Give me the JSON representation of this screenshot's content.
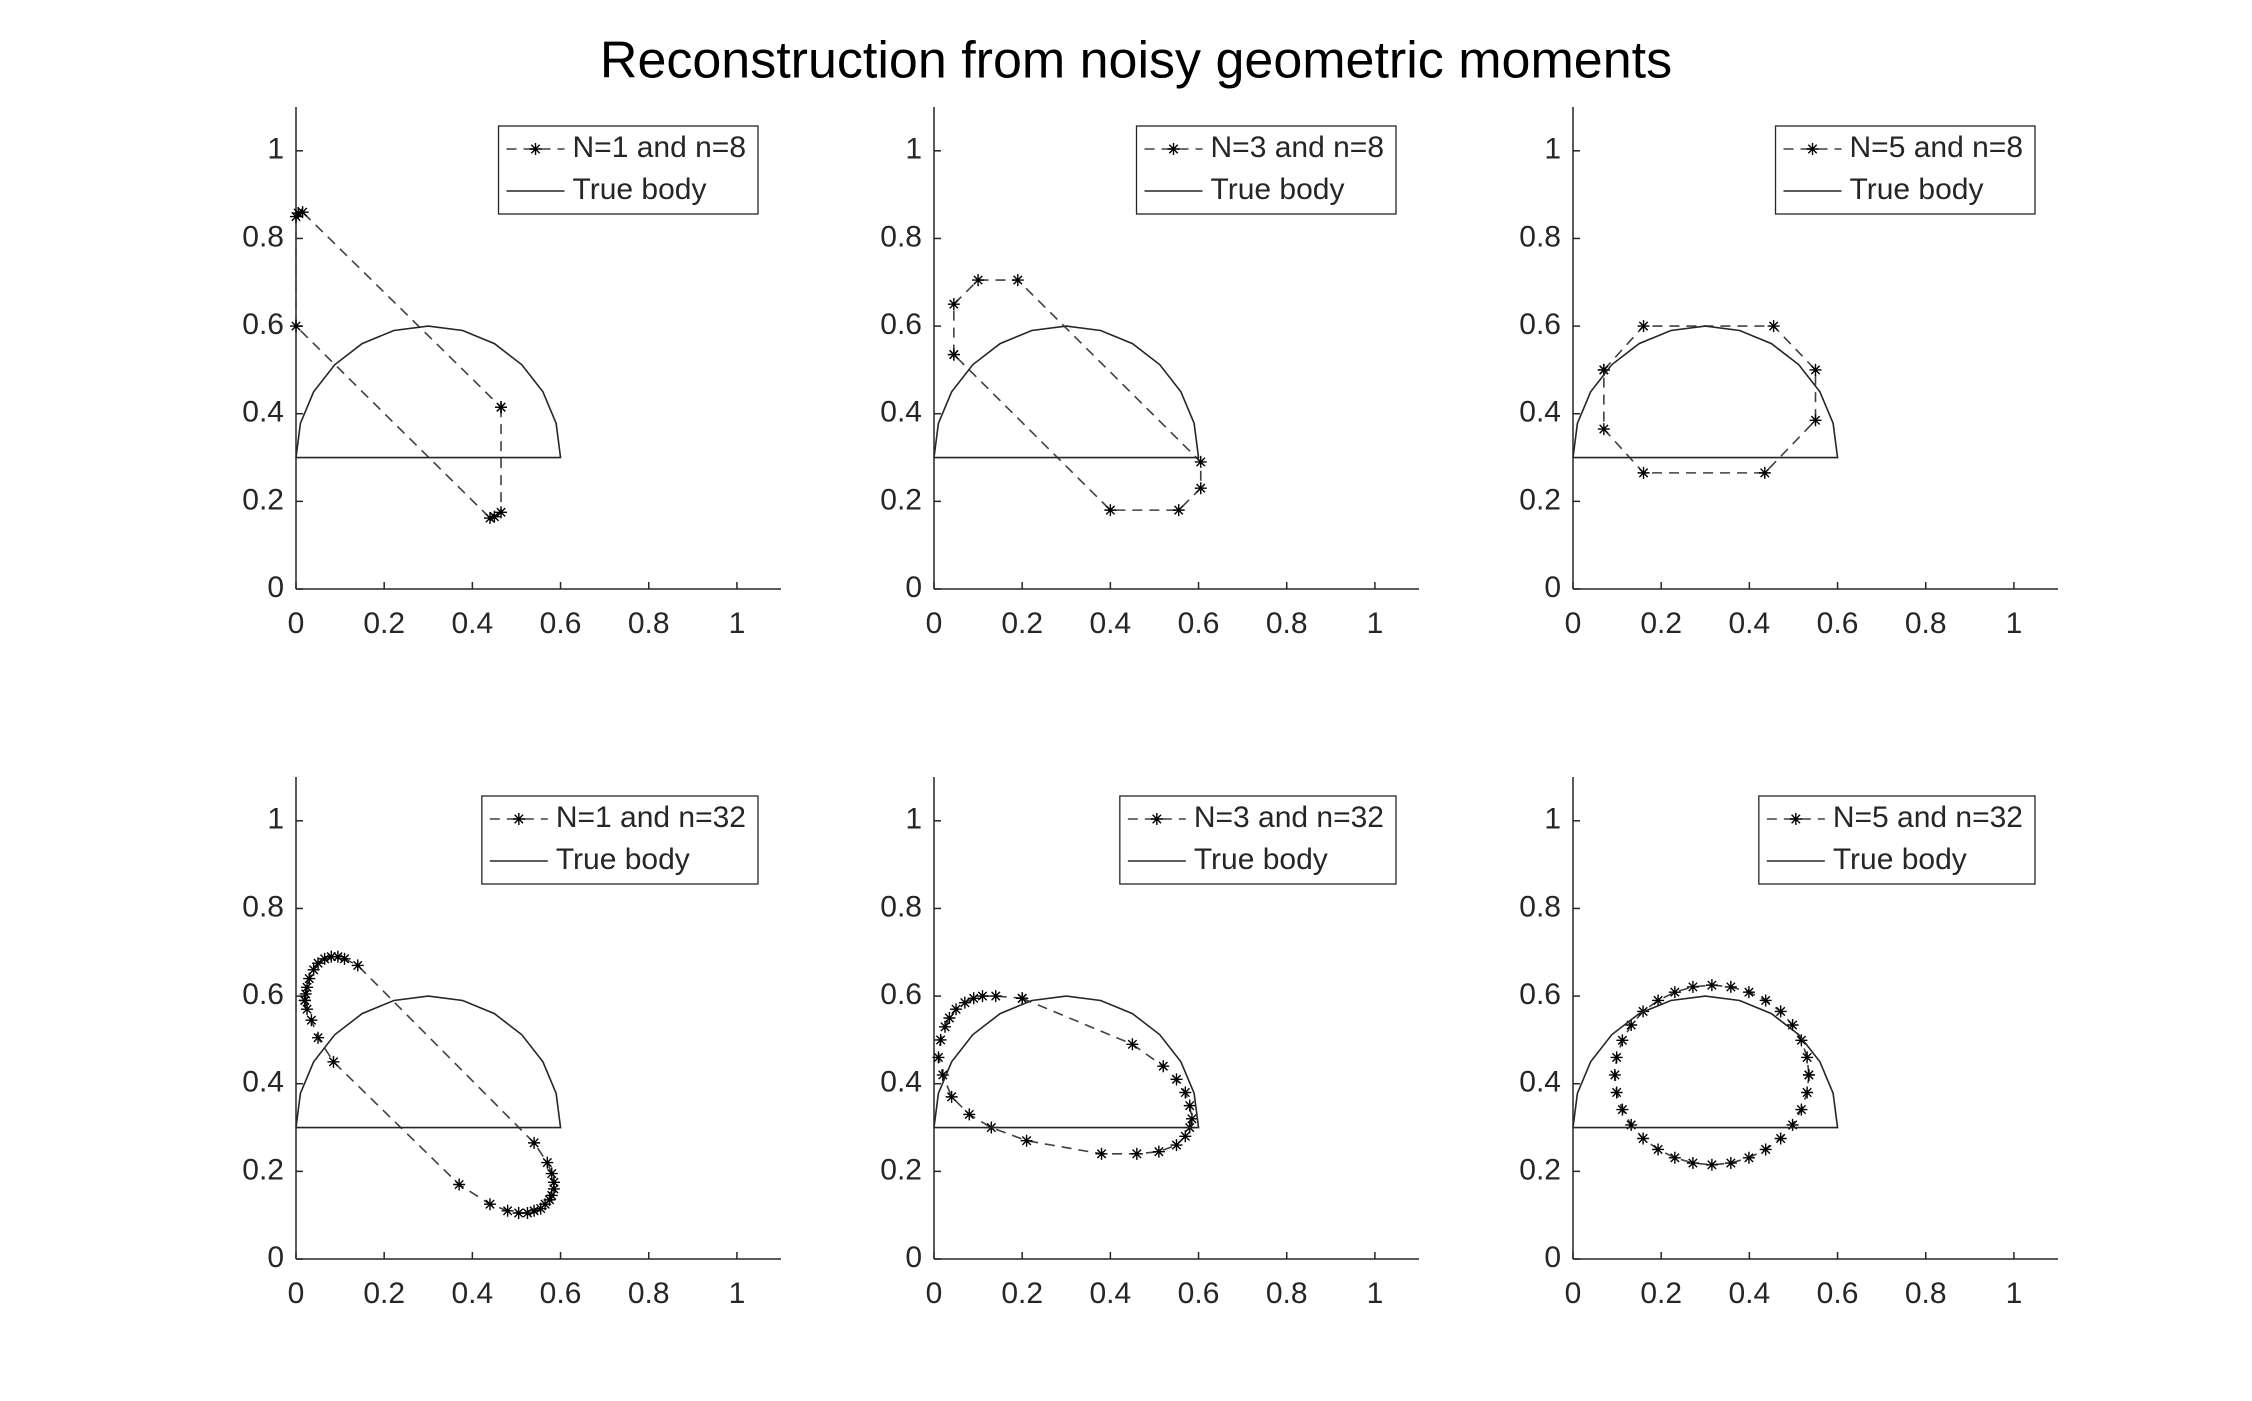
{
  "title": "Reconstruction from noisy geometric moments",
  "chart_data": [
    {
      "type": "line",
      "xlim": [
        0,
        1.1
      ],
      "ylim": [
        0,
        1.1
      ],
      "xticks": [
        0,
        0.2,
        0.4,
        0.6,
        0.8,
        1
      ],
      "yticks": [
        0,
        0.2,
        0.4,
        0.6,
        0.8,
        1
      ],
      "legend": "upper right",
      "series": [
        {
          "name": "N=1 and n=8",
          "color": "#404040",
          "linestyle": "--",
          "marker": "*",
          "x": [
            0.465,
            0.465,
            0.45,
            0.44,
            0,
            0,
            0.005,
            0.015,
            0.465
          ],
          "values": [
            0.415,
            0.175,
            0.165,
            0.162,
            0.6,
            0.85,
            0.858,
            0.86,
            0.415
          ]
        },
        {
          "name": "True body",
          "color": "#262626",
          "linestyle": "-",
          "x": [
            0,
            0.01,
            0.04,
            0.088,
            0.15,
            0.222,
            0.3,
            0.378,
            0.45,
            0.512,
            0.56,
            0.59,
            0.6,
            0
          ],
          "values": [
            0.3,
            0.378,
            0.45,
            0.512,
            0.56,
            0.59,
            0.6,
            0.59,
            0.56,
            0.512,
            0.45,
            0.378,
            0.3,
            0.3
          ]
        }
      ]
    },
    {
      "type": "line",
      "xlim": [
        0,
        1.1
      ],
      "ylim": [
        0,
        1.1
      ],
      "xticks": [
        0,
        0.2,
        0.4,
        0.6,
        0.8,
        1
      ],
      "yticks": [
        0,
        0.2,
        0.4,
        0.6,
        0.8,
        1
      ],
      "legend": "upper right",
      "series": [
        {
          "name": "N=3 and n=8",
          "color": "#404040",
          "linestyle": "--",
          "marker": "*",
          "x": [
            0.045,
            0.045,
            0.1,
            0.19,
            0.605,
            0.605,
            0.555,
            0.4,
            0.045
          ],
          "values": [
            0.535,
            0.65,
            0.705,
            0.705,
            0.29,
            0.23,
            0.18,
            0.18,
            0.535
          ]
        },
        {
          "name": "True body",
          "color": "#262626",
          "linestyle": "-",
          "x": [
            0,
            0.01,
            0.04,
            0.088,
            0.15,
            0.222,
            0.3,
            0.378,
            0.45,
            0.512,
            0.56,
            0.59,
            0.6,
            0
          ],
          "values": [
            0.3,
            0.378,
            0.45,
            0.512,
            0.56,
            0.59,
            0.6,
            0.59,
            0.56,
            0.512,
            0.45,
            0.378,
            0.3,
            0.3
          ]
        }
      ]
    },
    {
      "type": "line",
      "xlim": [
        0,
        1.1
      ],
      "ylim": [
        0,
        1.1
      ],
      "xticks": [
        0,
        0.2,
        0.4,
        0.6,
        0.8,
        1
      ],
      "yticks": [
        0,
        0.2,
        0.4,
        0.6,
        0.8,
        1
      ],
      "legend": "upper right",
      "series": [
        {
          "name": "N=5 and n=8",
          "color": "#404040",
          "linestyle": "--",
          "marker": "*",
          "x": [
            0.07,
            0.16,
            0.455,
            0.55,
            0.55,
            0.435,
            0.16,
            0.07,
            0.07
          ],
          "values": [
            0.5,
            0.6,
            0.6,
            0.5,
            0.385,
            0.265,
            0.265,
            0.365,
            0.5
          ]
        },
        {
          "name": "True body",
          "color": "#262626",
          "linestyle": "-",
          "x": [
            0,
            0.01,
            0.04,
            0.088,
            0.15,
            0.222,
            0.3,
            0.378,
            0.45,
            0.512,
            0.56,
            0.59,
            0.6,
            0
          ],
          "values": [
            0.3,
            0.378,
            0.45,
            0.512,
            0.56,
            0.59,
            0.6,
            0.59,
            0.56,
            0.512,
            0.45,
            0.378,
            0.3,
            0.3
          ]
        }
      ]
    },
    {
      "type": "line",
      "xlim": [
        0,
        1.1
      ],
      "ylim": [
        0,
        1.1
      ],
      "xticks": [
        0,
        0.2,
        0.4,
        0.6,
        0.8,
        1
      ],
      "yticks": [
        0,
        0.2,
        0.4,
        0.6,
        0.8,
        1
      ],
      "legend": "upper right",
      "series": [
        {
          "name": "N=1 and n=32",
          "color": "#404040",
          "linestyle": "--",
          "marker": "*",
          "x": [
            0.02,
            0.022,
            0.025,
            0.03,
            0.04,
            0.05,
            0.065,
            0.08,
            0.095,
            0.11,
            0.14,
            0.54,
            0.57,
            0.58,
            0.585,
            0.585,
            0.58,
            0.575,
            0.565,
            0.555,
            0.54,
            0.525,
            0.505,
            0.48,
            0.44,
            0.37,
            0.085,
            0.05,
            0.035,
            0.025,
            0.02
          ],
          "values": [
            0.59,
            0.605,
            0.62,
            0.64,
            0.66,
            0.675,
            0.685,
            0.69,
            0.69,
            0.685,
            0.67,
            0.265,
            0.22,
            0.195,
            0.175,
            0.16,
            0.145,
            0.135,
            0.125,
            0.115,
            0.11,
            0.105,
            0.105,
            0.11,
            0.125,
            0.17,
            0.45,
            0.505,
            0.545,
            0.57,
            0.59
          ]
        },
        {
          "name": "True body",
          "color": "#262626",
          "linestyle": "-",
          "x": [
            0,
            0.01,
            0.04,
            0.088,
            0.15,
            0.222,
            0.3,
            0.378,
            0.45,
            0.512,
            0.56,
            0.59,
            0.6,
            0
          ],
          "values": [
            0.3,
            0.378,
            0.45,
            0.512,
            0.56,
            0.59,
            0.6,
            0.59,
            0.56,
            0.512,
            0.45,
            0.378,
            0.3,
            0.3
          ]
        }
      ]
    },
    {
      "type": "line",
      "xlim": [
        0,
        1.1
      ],
      "ylim": [
        0,
        1.1
      ],
      "xticks": [
        0,
        0.2,
        0.4,
        0.6,
        0.8,
        1
      ],
      "yticks": [
        0,
        0.2,
        0.4,
        0.6,
        0.8,
        1
      ],
      "legend": "upper right",
      "series": [
        {
          "name": "N=3 and n=32",
          "color": "#404040",
          "linestyle": "--",
          "marker": "*",
          "x": [
            0.2,
            0.45,
            0.52,
            0.55,
            0.57,
            0.58,
            0.585,
            0.58,
            0.57,
            0.55,
            0.51,
            0.46,
            0.38,
            0.21,
            0.13,
            0.08,
            0.04,
            0.02,
            0.01,
            0.015,
            0.025,
            0.035,
            0.05,
            0.07,
            0.09,
            0.11,
            0.14,
            0.2
          ],
          "values": [
            0.595,
            0.49,
            0.44,
            0.41,
            0.38,
            0.35,
            0.32,
            0.3,
            0.28,
            0.26,
            0.245,
            0.24,
            0.24,
            0.27,
            0.3,
            0.33,
            0.37,
            0.42,
            0.46,
            0.5,
            0.53,
            0.55,
            0.57,
            0.585,
            0.595,
            0.6,
            0.6,
            0.595
          ]
        },
        {
          "name": "True body",
          "color": "#262626",
          "linestyle": "-",
          "x": [
            0,
            0.01,
            0.04,
            0.088,
            0.15,
            0.222,
            0.3,
            0.378,
            0.45,
            0.512,
            0.56,
            0.59,
            0.6,
            0
          ],
          "values": [
            0.3,
            0.378,
            0.45,
            0.512,
            0.56,
            0.59,
            0.6,
            0.59,
            0.56,
            0.512,
            0.45,
            0.378,
            0.3,
            0.3
          ]
        }
      ]
    },
    {
      "type": "line",
      "xlim": [
        0,
        1.1
      ],
      "ylim": [
        0,
        1.1
      ],
      "xticks": [
        0,
        0.2,
        0.4,
        0.6,
        0.8,
        1
      ],
      "yticks": [
        0,
        0.2,
        0.4,
        0.6,
        0.8,
        1
      ],
      "legend": "upper right",
      "series": [
        {
          "name": "N=5 and n=32",
          "color": "#404040",
          "linestyle": "--",
          "marker": "*",
          "x": [
            0.535,
            0.531,
            0.518,
            0.498,
            0.471,
            0.437,
            0.399,
            0.358,
            0.315,
            0.272,
            0.231,
            0.193,
            0.159,
            0.132,
            0.112,
            0.099,
            0.095,
            0.099,
            0.112,
            0.132,
            0.159,
            0.193,
            0.231,
            0.272,
            0.315,
            0.358,
            0.399,
            0.437,
            0.471,
            0.498,
            0.518,
            0.531,
            0.535
          ],
          "values": [
            0.42,
            0.46,
            0.499,
            0.534,
            0.565,
            0.59,
            0.609,
            0.621,
            0.625,
            0.621,
            0.609,
            0.59,
            0.565,
            0.534,
            0.499,
            0.46,
            0.42,
            0.38,
            0.341,
            0.306,
            0.275,
            0.25,
            0.231,
            0.219,
            0.215,
            0.219,
            0.231,
            0.25,
            0.275,
            0.306,
            0.341,
            0.38,
            0.42
          ]
        },
        {
          "name": "True body",
          "color": "#262626",
          "linestyle": "-",
          "x": [
            0,
            0.01,
            0.04,
            0.088,
            0.15,
            0.222,
            0.3,
            0.378,
            0.45,
            0.512,
            0.56,
            0.59,
            0.6,
            0
          ],
          "values": [
            0.3,
            0.378,
            0.45,
            0.512,
            0.56,
            0.59,
            0.6,
            0.59,
            0.56,
            0.512,
            0.45,
            0.378,
            0.3,
            0.3
          ]
        }
      ]
    }
  ]
}
